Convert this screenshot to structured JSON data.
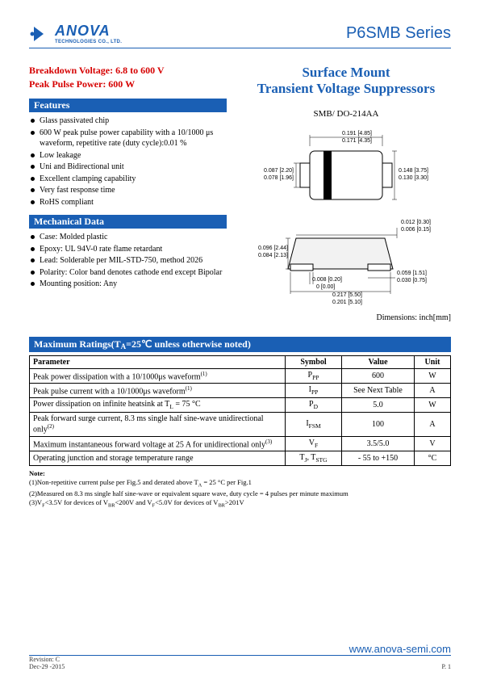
{
  "header": {
    "logo_name": "ANOVA",
    "logo_sub": "TECHNOLOGIES CO., LTD.",
    "series": "P6SMB Series"
  },
  "specs": {
    "breakdown": "Breakdown Voltage: 6.8 to 600 V",
    "peak": "Peak Pulse Power: 600 W"
  },
  "features": {
    "title": "Features",
    "items": [
      "Glass passivated chip",
      "600 W peak pulse power capability with a 10/1000 μs waveform, repetitive rate (duty cycle):0.01 %",
      "Low leakage",
      "Uni and Bidirectional unit",
      "Excellent clamping capability",
      "Very fast response time",
      "RoHS compliant"
    ]
  },
  "mechanical": {
    "title": "Mechanical Data",
    "items": [
      "Case: Molded plastic",
      "Epoxy: UL 94V-0 rate flame retardant",
      "Lead: Solderable per MIL-STD-750, method 2026",
      "Polarity: Color band denotes cathode end except Bipolar",
      "Mounting position: Any"
    ]
  },
  "product": {
    "title_l1": "Surface Mount",
    "title_l2": "Transient Voltage Suppressors",
    "package": "SMB/ DO-214AA",
    "dim_note": "Dimensions: inch[mm]"
  },
  "drawing_top": {
    "w1": "0.191 [4.85]",
    "w2": "0.171 [4.35]",
    "h1": "0.087 [2.20]",
    "h2": "0.078 [1.96]",
    "r1": "0.148 [3.75]",
    "r2": "0.130 [3.30]"
  },
  "drawing_bottom": {
    "t1": "0.012 [0.30]",
    "t2": "0.006 [0.15]",
    "l1": "0.096 [2.44]",
    "l2": "0.084 [2.13]",
    "c1": "0.008 [0.20]",
    "c2": "0 [0.00]",
    "f1": "0.059 [1.51]",
    "f2": "0.030 [0.75]",
    "b1": "0.217 [5.50]",
    "b2": "0.201 [5.10]"
  },
  "ratings": {
    "title": "Maximum Ratings(T",
    "title_sub": "A",
    "title_rest": "=25℃ unless otherwise noted)",
    "headers": [
      "Parameter",
      "Symbol",
      "Value",
      "Unit"
    ],
    "rows": [
      {
        "p": "Peak power dissipation with a 10/1000μs waveform",
        "sup": "(1)",
        "s": "P",
        "ssub": "PP",
        "v": "600",
        "u": "W"
      },
      {
        "p": "Peak pulse current with a 10/1000μs waveform",
        "sup": "(1)",
        "s": "I",
        "ssub": "PP",
        "v": "See Next Table",
        "u": "A"
      },
      {
        "p": "Power dissipation on infinite heatsink at T",
        "psub": "L",
        "prest": " = 75 °C",
        "s": "P",
        "ssub": "D",
        "v": "5.0",
        "u": "W"
      },
      {
        "p": "Peak forward surge current, 8.3 ms single half sine-wave unidirectional only",
        "sup": "(2)",
        "s": "I",
        "ssub": "FSM",
        "v": "100",
        "u": "A"
      },
      {
        "p": "Maximum instantaneous forward voltage at 25 A for unidirectional only",
        "sup": "(3)",
        "s": "V",
        "ssub": "F",
        "v": "3.5/5.0",
        "u": "V"
      },
      {
        "p": "Operating junction and storage temperature range",
        "s": "T",
        "ssub": "J",
        "s2": ", T",
        "ssub2": "STG",
        "v": "- 55 to +150",
        "u": "°C"
      }
    ]
  },
  "notes": {
    "label": "Note:",
    "lines": [
      "(1)Non-repetitive current pulse per Fig.5 and derated above T",
      "(2)Measured on 8.3 ms single half sine-wave or equivalent square wave, duty cycle = 4 pulses per minute maximum",
      "(3)V"
    ],
    "n1_sub": "A",
    "n1_rest": " = 25 °C per Fig.1",
    "n3_sub1": "F",
    "n3_txt1": "<3.5V for devices of V",
    "n3_sub2": "BR",
    "n3_txt2": "<200V and V",
    "n3_sub3": "F",
    "n3_txt3": "<5.0V for devices of V",
    "n3_sub4": "BR",
    "n3_txt4": ">201V"
  },
  "footer": {
    "rev": "Revision: C",
    "date": "Dec-29 -2015",
    "url": "www.anova-semi.com",
    "page": "P. 1"
  },
  "colors": {
    "blue": "#1a5fb4",
    "red": "#d60000"
  }
}
